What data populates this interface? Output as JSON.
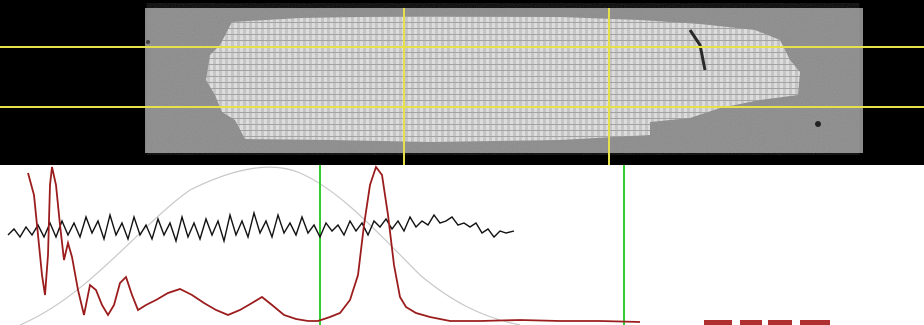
{
  "colors": {
    "background": "#000000",
    "specimen_background": "#8a8a8a",
    "cell": "#d8d8d8",
    "roi_line": "#e6e04a",
    "cursor_line": "#33cc33",
    "profile_line": "#111111",
    "spectrum_line": "#9b1c1c",
    "gaussian_line": "#c8c8c8"
  },
  "image_view": {
    "horizontal_roi_lines": 2,
    "vertical_roi_lines": 2
  },
  "plot_view": {
    "vertical_cursors": 2,
    "series": [
      {
        "kind": "intensity-profile",
        "color": "#111111"
      },
      {
        "kind": "power-spectrum",
        "color": "#9b1c1c"
      },
      {
        "kind": "gaussian-fit",
        "color": "#c8c8c8"
      }
    ]
  }
}
